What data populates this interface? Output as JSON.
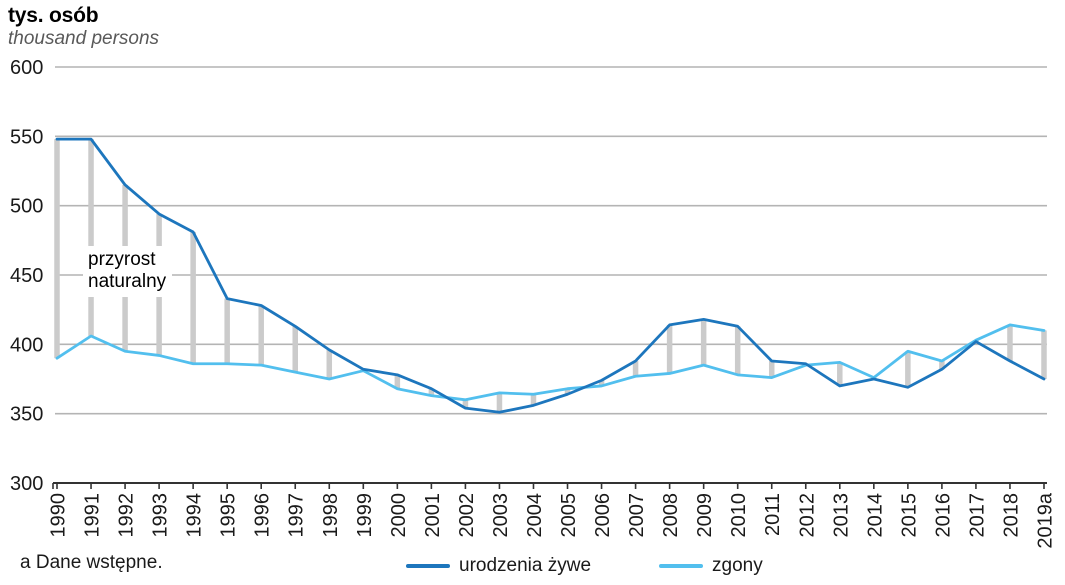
{
  "header": {
    "title": "tys. osób",
    "subtitle": "thousand persons"
  },
  "footnote": "a Dane wstępne.",
  "annotation": {
    "line1": "przyrost",
    "line2": "naturalny"
  },
  "legend": [
    {
      "label": "urodzenia żywe",
      "color": "#1d76bd"
    },
    {
      "label": "zgony",
      "color": "#52bfee"
    }
  ],
  "colors": {
    "births_line": "#1d76bd",
    "deaths_line": "#52bfee",
    "gap_bars": "#cbcbcb",
    "gridline": "#b4b4b4",
    "axis": "#333333",
    "text": "#1a1a1a"
  },
  "chart_data": {
    "type": "line",
    "title": "Urodzenia żywe i zgony (live births and deaths), Poland",
    "unit_label": "tys. osób / thousand persons",
    "x": [
      "1990",
      "1991",
      "1992",
      "1993",
      "1994",
      "1995",
      "1996",
      "1997",
      "1998",
      "1999",
      "2000",
      "2001",
      "2002",
      "2003",
      "2004",
      "2005",
      "2006",
      "2007",
      "2008",
      "2009",
      "2010",
      "2011",
      "2012",
      "2013",
      "2014",
      "2015",
      "2016",
      "2017",
      "2018",
      "2019a"
    ],
    "series": [
      {
        "name": "urodzenia żywe",
        "color": "#1d76bd",
        "values": [
          548,
          548,
          515,
          494,
          481,
          433,
          428,
          413,
          396,
          382,
          378,
          368,
          354,
          351,
          356,
          364,
          374,
          388,
          414,
          418,
          413,
          388,
          386,
          370,
          375,
          369,
          382,
          402,
          388,
          375
        ]
      },
      {
        "name": "zgony",
        "color": "#52bfee",
        "values": [
          390,
          406,
          395,
          392,
          386,
          386,
          385,
          380,
          375,
          381,
          368,
          363,
          360,
          365,
          364,
          368,
          370,
          377,
          379,
          385,
          378,
          376,
          385,
          387,
          376,
          395,
          388,
          403,
          414,
          410
        ]
      }
    ],
    "gap_label": "przyrost naturalny",
    "gap_bars_between_series": true,
    "ylim": [
      300,
      600
    ],
    "yticks": [
      600,
      550,
      500,
      450,
      400,
      350,
      300
    ],
    "grid": "horizontal",
    "legend_position": "bottom",
    "footnote_marker": "a",
    "footnote_text": "Dane wstępne."
  }
}
